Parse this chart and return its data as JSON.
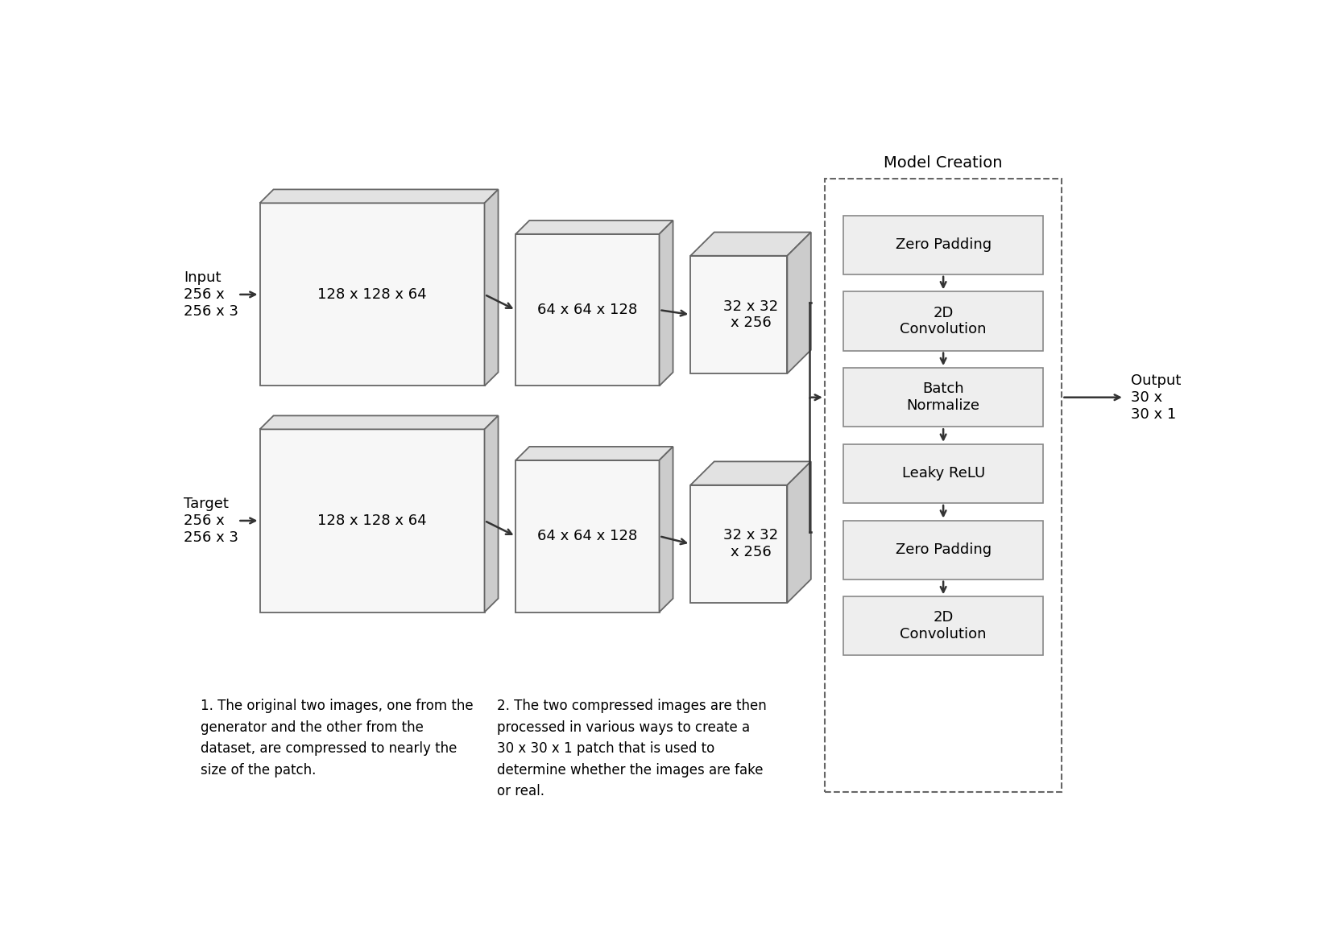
{
  "bg_color": "#ffffff",
  "face_color_light": "#f7f7f7",
  "side_color": "#cccccc",
  "top_color": "#e2e2e2",
  "edge_color": "#666666",
  "arrow_color": "#333333",
  "text_color": "#000000",
  "model_face": "#eeeeee",
  "model_edge": "#888888",
  "dashed_edge": "#666666",
  "input_label": "Input\n256 x\n256 x 3",
  "target_label": "Target\n256 x\n256 x 3",
  "output_label": "Output\n30 x\n30 x 1",
  "model_title": "Model Creation",
  "block1_top_label": "128 x 128 x 64",
  "block2_top_label": "64 x 64 x 128",
  "block3_top_label": "32 x 32\nx 256",
  "block1_bot_label": "128 x 128 x 64",
  "block2_bot_label": "64 x 64 x 128",
  "block3_bot_label": "32 x 32\nx 256",
  "model_boxes": [
    "Zero Padding",
    "2D\nConvolution",
    "Batch\nNormalize",
    "Leaky ReLU",
    "Zero Padding",
    "2D\nConvolution"
  ],
  "note1": "1. The original two images, one from the\ngenerator and the other from the\ndataset, are compressed to nearly the\nsize of the patch.",
  "note2": "2. The two compressed images are then\nprocessed in various ways to create a\n30 x 30 x 1 patch that is used to\ndetermine whether the images are fake\nor real."
}
